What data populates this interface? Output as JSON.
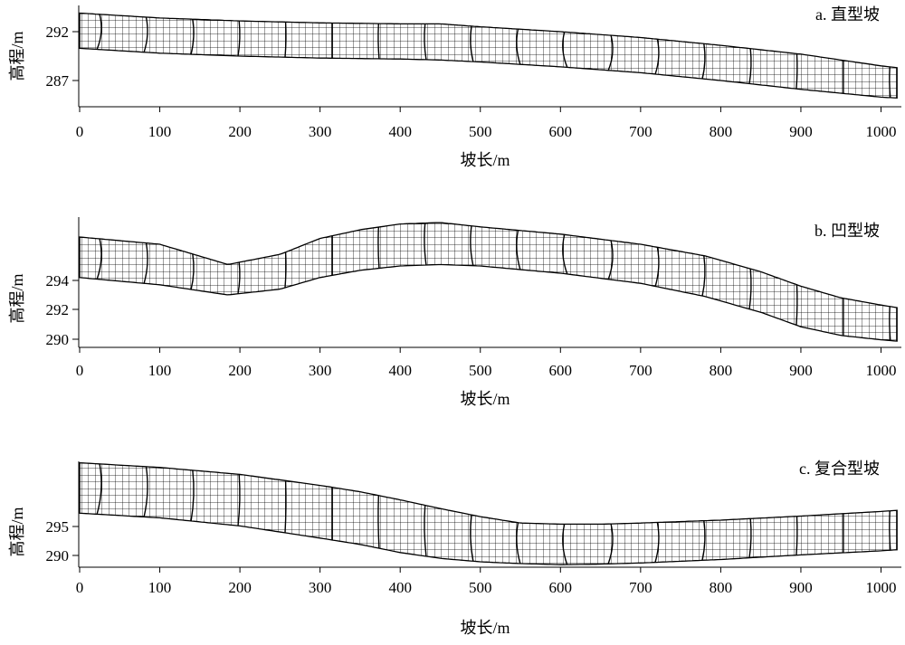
{
  "panels": [
    {
      "id": "a",
      "label": "a. 直型坡",
      "y_label": "高程/m",
      "x_label": "坡长/m",
      "x_ticks": [
        "0",
        "100",
        "200",
        "300",
        "400",
        "500",
        "600",
        "700",
        "800",
        "900",
        "1000"
      ],
      "y_ticks": [
        "292",
        "287"
      ],
      "elevation_band_m": {
        "x": [
          0,
          100,
          200,
          300,
          400,
          450,
          500,
          600,
          700,
          800,
          900,
          1000,
          1022
        ],
        "upper": [
          293.9,
          293.4,
          293.1,
          292.9,
          292.8,
          292.8,
          292.5,
          292.0,
          291.4,
          290.6,
          289.7,
          288.5,
          288.3
        ],
        "lower": [
          290.3,
          289.8,
          289.5,
          289.3,
          289.2,
          289.1,
          288.9,
          288.4,
          287.8,
          287.0,
          286.1,
          285.3,
          285.2
        ]
      }
    },
    {
      "id": "b",
      "label": "b. 凹型坡",
      "y_label": "高程/m",
      "x_label": "坡长/m",
      "x_ticks": [
        "0",
        "100",
        "200",
        "300",
        "400",
        "500",
        "600",
        "700",
        "800",
        "900",
        "1000"
      ],
      "y_ticks": [
        "294",
        "292",
        "290"
      ],
      "elevation_band_m": {
        "x": [
          0,
          100,
          185,
          250,
          300,
          350,
          400,
          450,
          500,
          600,
          700,
          780,
          850,
          900,
          950,
          1000,
          1022
        ],
        "upper": [
          297.0,
          296.5,
          295.1,
          295.8,
          296.9,
          297.5,
          297.9,
          298.0,
          297.7,
          297.2,
          296.5,
          295.7,
          294.6,
          293.6,
          292.8,
          292.3,
          292.1
        ],
        "lower": [
          294.2,
          293.7,
          293.0,
          293.4,
          294.2,
          294.7,
          295.0,
          295.1,
          295.0,
          294.5,
          293.8,
          292.9,
          291.8,
          290.8,
          290.2,
          289.9,
          289.8
        ]
      }
    },
    {
      "id": "c",
      "label": "c. 复合型坡",
      "y_label": "高程/m",
      "x_label": "坡长/m",
      "x_ticks": [
        "0",
        "100",
        "200",
        "300",
        "400",
        "500",
        "600",
        "700",
        "800",
        "900",
        "1000"
      ],
      "y_ticks": [
        "295",
        "290"
      ],
      "elevation_band_m": {
        "x": [
          0,
          100,
          200,
          300,
          350,
          400,
          450,
          500,
          550,
          600,
          650,
          700,
          800,
          900,
          1000,
          1022
        ],
        "upper": [
          306.0,
          305.2,
          304.0,
          302.1,
          301.0,
          299.6,
          298.1,
          296.7,
          295.6,
          295.4,
          295.4,
          295.6,
          296.1,
          296.8,
          297.6,
          297.8
        ],
        "lower": [
          297.3,
          296.5,
          295.1,
          293.0,
          291.9,
          290.5,
          289.5,
          288.9,
          288.6,
          288.4,
          288.5,
          288.7,
          289.3,
          290.1,
          290.8,
          291.0
        ]
      }
    }
  ]
}
